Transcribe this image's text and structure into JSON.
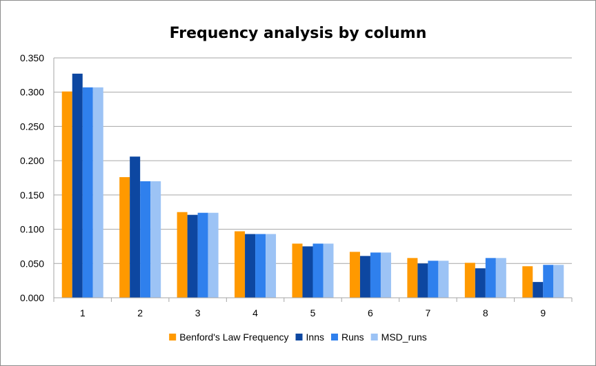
{
  "chart_data": {
    "type": "bar",
    "title": "Frequency analysis by column",
    "xlabel": "",
    "ylabel": "",
    "categories": [
      "1",
      "2",
      "3",
      "4",
      "5",
      "6",
      "7",
      "8",
      "9"
    ],
    "series": [
      {
        "name": "Benford's Law Frequency",
        "color": "#FF9900",
        "values": [
          0.301,
          0.176,
          0.125,
          0.097,
          0.079,
          0.067,
          0.058,
          0.051,
          0.046
        ]
      },
      {
        "name": "Inns",
        "color": "#0D47A1",
        "values": [
          0.327,
          0.206,
          0.121,
          0.093,
          0.075,
          0.061,
          0.05,
          0.043,
          0.023
        ]
      },
      {
        "name": "Runs",
        "color": "#2F80ED",
        "values": [
          0.307,
          0.17,
          0.124,
          0.093,
          0.079,
          0.066,
          0.054,
          0.058,
          0.048
        ]
      },
      {
        "name": "MSD_runs",
        "color": "#9CC3F5",
        "values": [
          0.307,
          0.17,
          0.124,
          0.093,
          0.079,
          0.066,
          0.054,
          0.058,
          0.048
        ]
      }
    ],
    "ylim": [
      0,
      0.35
    ],
    "yticks": [
      "0.000",
      "0.050",
      "0.100",
      "0.150",
      "0.200",
      "0.250",
      "0.300",
      "0.350"
    ],
    "grid": true,
    "legend_position": "bottom"
  }
}
